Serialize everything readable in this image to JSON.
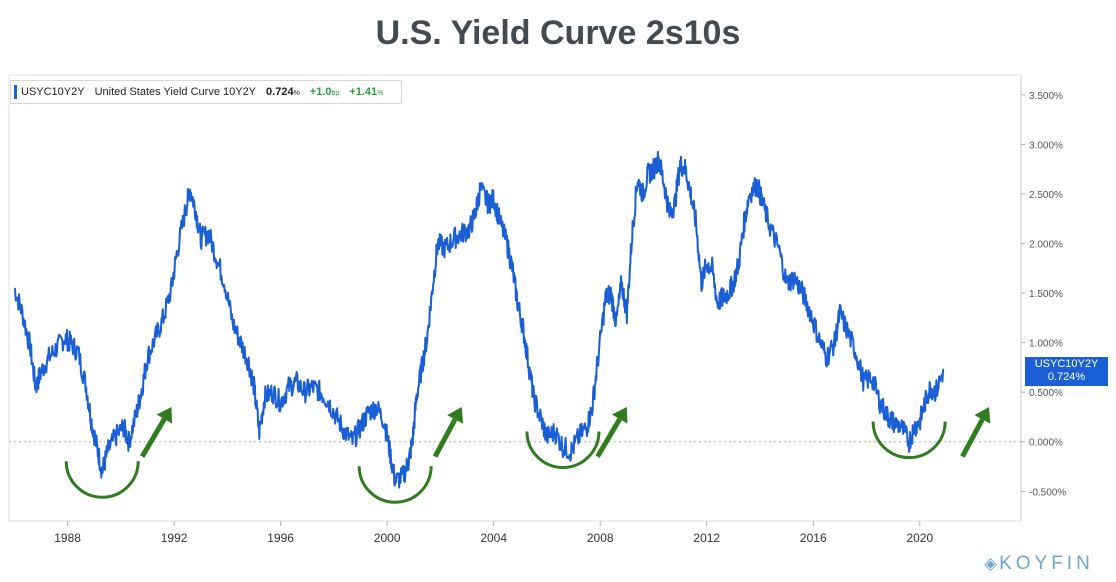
{
  "title": "U.S. Yield Curve 2s10s",
  "legend": {
    "ticker": "USYC10Y2Y",
    "name": "United States Yield Curve 10Y2Y",
    "value": "0.724",
    "value_unit": "%",
    "change_bp": "+1.0",
    "change_bp_unit": "bp",
    "change_pct": "+1.41",
    "change_pct_unit": "%"
  },
  "last_value_tag": {
    "ticker": "USYC10Y2Y",
    "value": "0.724%"
  },
  "brand": "KOYFIN",
  "colors": {
    "line": "#1a5fd6",
    "annotation": "#2f7d1f",
    "tag": "#1a5fd6"
  },
  "chart_data": {
    "type": "line",
    "series": [
      {
        "name": "USYC10Y2Y",
        "points": [
          [
            1986.0,
            1.55
          ],
          [
            1986.3,
            1.3
          ],
          [
            1986.6,
            0.95
          ],
          [
            1986.8,
            0.55
          ],
          [
            1987.0,
            0.7
          ],
          [
            1987.3,
            0.85
          ],
          [
            1987.6,
            0.95
          ],
          [
            1987.9,
            1.05
          ],
          [
            1988.1,
            1.0
          ],
          [
            1988.4,
            0.9
          ],
          [
            1988.7,
            0.55
          ],
          [
            1988.9,
            0.2
          ],
          [
            1989.1,
            -0.05
          ],
          [
            1989.3,
            -0.3
          ],
          [
            1989.5,
            -0.1
          ],
          [
            1989.8,
            0.05
          ],
          [
            1990.1,
            0.15
          ],
          [
            1990.3,
            0.0
          ],
          [
            1990.6,
            0.3
          ],
          [
            1990.8,
            0.55
          ],
          [
            1991.0,
            0.85
          ],
          [
            1991.3,
            1.05
          ],
          [
            1991.6,
            1.25
          ],
          [
            1991.9,
            1.55
          ],
          [
            1992.1,
            1.9
          ],
          [
            1992.4,
            2.3
          ],
          [
            1992.6,
            2.55
          ],
          [
            1992.8,
            2.35
          ],
          [
            1993.0,
            2.05
          ],
          [
            1993.3,
            2.1
          ],
          [
            1993.6,
            1.85
          ],
          [
            1993.9,
            1.6
          ],
          [
            1994.2,
            1.2
          ],
          [
            1994.5,
            1.0
          ],
          [
            1994.8,
            0.8
          ],
          [
            1995.0,
            0.55
          ],
          [
            1995.2,
            0.1
          ],
          [
            1995.4,
            0.45
          ],
          [
            1995.7,
            0.5
          ],
          [
            1996.0,
            0.4
          ],
          [
            1996.3,
            0.55
          ],
          [
            1996.6,
            0.6
          ],
          [
            1996.9,
            0.5
          ],
          [
            1997.2,
            0.55
          ],
          [
            1997.5,
            0.5
          ],
          [
            1997.8,
            0.4
          ],
          [
            1998.1,
            0.25
          ],
          [
            1998.4,
            0.1
          ],
          [
            1998.7,
            0.0
          ],
          [
            1999.0,
            0.15
          ],
          [
            1999.3,
            0.3
          ],
          [
            1999.6,
            0.35
          ],
          [
            1999.9,
            0.2
          ],
          [
            2000.1,
            -0.1
          ],
          [
            2000.3,
            -0.4
          ],
          [
            2000.6,
            -0.35
          ],
          [
            2000.8,
            -0.2
          ],
          [
            2000.95,
            0.0
          ],
          [
            2001.1,
            0.45
          ],
          [
            2001.3,
            0.75
          ],
          [
            2001.5,
            1.05
          ],
          [
            2001.7,
            1.55
          ],
          [
            2001.9,
            2.0
          ],
          [
            2002.2,
            1.95
          ],
          [
            2002.5,
            2.05
          ],
          [
            2002.8,
            2.1
          ],
          [
            2003.1,
            2.15
          ],
          [
            2003.3,
            2.3
          ],
          [
            2003.5,
            2.55
          ],
          [
            2003.8,
            2.4
          ],
          [
            2004.0,
            2.45
          ],
          [
            2004.2,
            2.25
          ],
          [
            2004.5,
            2.0
          ],
          [
            2004.7,
            1.75
          ],
          [
            2004.9,
            1.4
          ],
          [
            2005.1,
            1.15
          ],
          [
            2005.3,
            0.8
          ],
          [
            2005.5,
            0.45
          ],
          [
            2005.8,
            0.2
          ],
          [
            2006.0,
            0.05
          ],
          [
            2006.3,
            0.1
          ],
          [
            2006.6,
            -0.05
          ],
          [
            2006.9,
            -0.1
          ],
          [
            2007.2,
            0.05
          ],
          [
            2007.5,
            0.15
          ],
          [
            2007.7,
            0.35
          ],
          [
            2007.9,
            0.8
          ],
          [
            2008.2,
            1.45
          ],
          [
            2008.4,
            1.5
          ],
          [
            2008.6,
            1.2
          ],
          [
            2008.8,
            1.6
          ],
          [
            2009.0,
            1.3
          ],
          [
            2009.2,
            2.1
          ],
          [
            2009.4,
            2.65
          ],
          [
            2009.6,
            2.5
          ],
          [
            2009.8,
            2.7
          ],
          [
            2010.0,
            2.75
          ],
          [
            2010.2,
            2.85
          ],
          [
            2010.4,
            2.6
          ],
          [
            2010.6,
            2.3
          ],
          [
            2010.8,
            2.4
          ],
          [
            2011.0,
            2.8
          ],
          [
            2011.2,
            2.75
          ],
          [
            2011.4,
            2.5
          ],
          [
            2011.6,
            2.2
          ],
          [
            2011.8,
            1.6
          ],
          [
            2012.0,
            1.8
          ],
          [
            2012.2,
            1.75
          ],
          [
            2012.4,
            1.4
          ],
          [
            2012.6,
            1.45
          ],
          [
            2012.8,
            1.5
          ],
          [
            2013.0,
            1.6
          ],
          [
            2013.2,
            1.8
          ],
          [
            2013.4,
            2.2
          ],
          [
            2013.6,
            2.5
          ],
          [
            2013.9,
            2.6
          ],
          [
            2014.1,
            2.4
          ],
          [
            2014.4,
            2.15
          ],
          [
            2014.7,
            1.95
          ],
          [
            2015.0,
            1.6
          ],
          [
            2015.3,
            1.65
          ],
          [
            2015.6,
            1.5
          ],
          [
            2015.9,
            1.3
          ],
          [
            2016.2,
            1.05
          ],
          [
            2016.5,
            0.85
          ],
          [
            2016.8,
            1.0
          ],
          [
            2017.0,
            1.3
          ],
          [
            2017.3,
            1.1
          ],
          [
            2017.6,
            0.9
          ],
          [
            2017.9,
            0.6
          ],
          [
            2018.2,
            0.65
          ],
          [
            2018.5,
            0.4
          ],
          [
            2018.8,
            0.25
          ],
          [
            2019.0,
            0.2
          ],
          [
            2019.3,
            0.15
          ],
          [
            2019.6,
            0.0
          ],
          [
            2019.8,
            0.15
          ],
          [
            2020.0,
            0.2
          ],
          [
            2020.2,
            0.4
          ],
          [
            2020.4,
            0.55
          ],
          [
            2020.6,
            0.5
          ],
          [
            2020.9,
            0.724
          ]
        ]
      }
    ],
    "title": "U.S. Yield Curve 2s10s",
    "xlabel": "",
    "ylabel": "",
    "xlim": [
      1985.8,
      2023.8
    ],
    "ylim": [
      -0.8,
      3.7
    ],
    "x_ticks": [
      1988,
      1992,
      1996,
      2000,
      2004,
      2008,
      2012,
      2016,
      2020
    ],
    "x_tick_labels": [
      "1988",
      "1992",
      "1996",
      "2000",
      "2004",
      "2008",
      "2012",
      "2016",
      "2020"
    ],
    "y_ticks": [
      -0.5,
      0.0,
      0.5,
      1.0,
      1.5,
      2.0,
      2.5,
      3.0,
      3.5
    ],
    "y_tick_labels": [
      "-0.500%",
      "0.000%",
      "0.500%",
      "1.000%",
      "1.500%",
      "2.000%",
      "2.500%",
      "3.000%",
      "3.500%"
    ],
    "reference_line": 0,
    "grid": false,
    "annotations": [
      {
        "type": "trough-arc",
        "x_center": 1989.3,
        "y": -0.5
      },
      {
        "type": "up-arrow",
        "x_from": 1990.8,
        "x_to": 1991.9
      },
      {
        "type": "trough-arc",
        "x_center": 2000.3,
        "y": -0.55
      },
      {
        "type": "up-arrow",
        "x_from": 2001.8,
        "x_to": 2002.8
      },
      {
        "type": "trough-arc",
        "x_center": 2006.6,
        "y": -0.2
      },
      {
        "type": "up-arrow",
        "x_from": 2007.9,
        "x_to": 2009.0
      },
      {
        "type": "trough-arc",
        "x_center": 2019.6,
        "y": -0.1
      },
      {
        "type": "up-arrow",
        "x_from": 2021.6,
        "x_to": 2022.6
      }
    ]
  }
}
